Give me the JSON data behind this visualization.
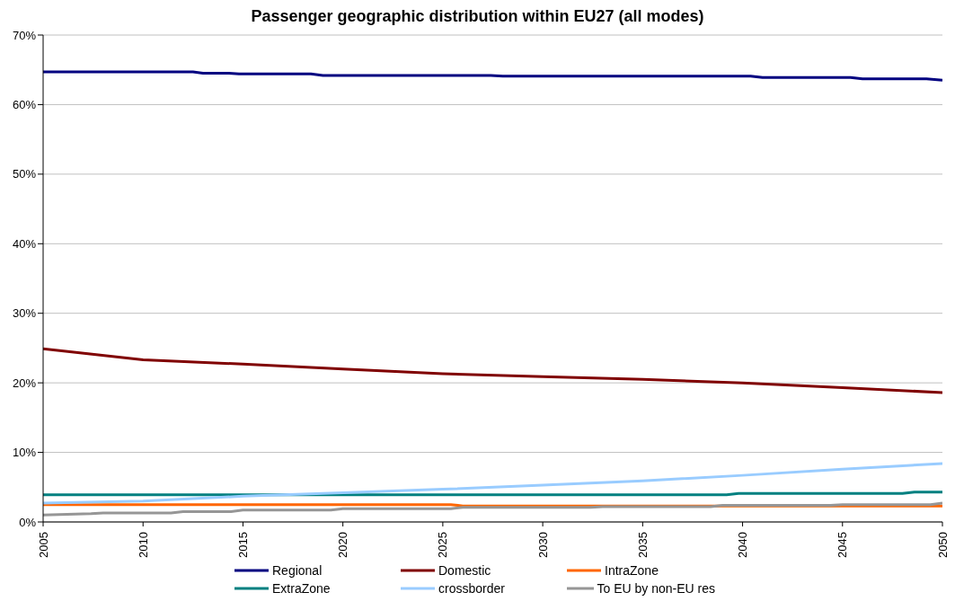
{
  "chart_data": {
    "type": "line",
    "title": "Passenger geographic distribution within EU27 (all modes)",
    "xlim": [
      2005,
      2050
    ],
    "xticks": [
      2005,
      2010,
      2015,
      2020,
      2025,
      2030,
      2035,
      2040,
      2045,
      2050
    ],
    "ylim": [
      0,
      70
    ],
    "yticks": [
      {
        "value": 0,
        "label": "0%"
      },
      {
        "value": 10,
        "label": "10%"
      },
      {
        "value": 20,
        "label": "20%"
      },
      {
        "value": 30,
        "label": "30%"
      },
      {
        "value": 40,
        "label": "40%"
      },
      {
        "value": 50,
        "label": "50%"
      },
      {
        "value": 60,
        "label": "60%"
      },
      {
        "value": 70,
        "label": "70%"
      }
    ],
    "grid": "y",
    "legend": "bottom",
    "marker": "none",
    "line_style": "solid",
    "series": [
      {
        "name": "Regional",
        "color": "#000080",
        "x": [
          2005,
          2012.5,
          2013,
          2014.3,
          2014.8,
          2018.4,
          2019,
          2027.4,
          2028,
          2040.4,
          2041,
          2045.4,
          2046,
          2049.2,
          2050
        ],
        "values": [
          64.7,
          64.7,
          64.5,
          64.5,
          64.4,
          64.4,
          64.2,
          64.2,
          64.1,
          64.1,
          63.9,
          63.9,
          63.7,
          63.7,
          63.5
        ]
      },
      {
        "name": "Domestic",
        "color": "#800000",
        "x": [
          2005,
          2010,
          2015,
          2020,
          2025,
          2030,
          2035,
          2040,
          2045,
          2050
        ],
        "values": [
          24.9,
          23.3,
          22.7,
          22.0,
          21.3,
          20.9,
          20.5,
          20.0,
          19.3,
          18.6
        ]
      },
      {
        "name": "IntraZone",
        "color": "#ff6600",
        "x": [
          2005,
          2025.4,
          2026,
          2050
        ],
        "values": [
          2.5,
          2.5,
          2.3,
          2.3
        ]
      },
      {
        "name": "ExtraZone",
        "color": "#008080",
        "x": [
          2005,
          2039.2,
          2039.8,
          2048,
          2048.6,
          2050
        ],
        "values": [
          3.9,
          3.9,
          4.1,
          4.1,
          4.3,
          4.3
        ]
      },
      {
        "name": "crossborder",
        "color": "#99ccff",
        "x": [
          2005,
          2010,
          2015,
          2020,
          2025,
          2030,
          2035,
          2040,
          2045,
          2050
        ],
        "values": [
          2.7,
          3.0,
          3.7,
          4.2,
          4.7,
          5.3,
          5.9,
          6.7,
          7.6,
          8.4
        ]
      },
      {
        "name": "To EU by non-EU res",
        "color": "#969696",
        "x": [
          2005,
          2007.4,
          2008,
          2011.4,
          2012,
          2014.4,
          2015,
          2019.4,
          2020,
          2025.4,
          2026,
          2032.4,
          2033,
          2038.4,
          2039,
          2044.4,
          2045,
          2049.4,
          2050
        ],
        "values": [
          1.0,
          1.2,
          1.3,
          1.3,
          1.5,
          1.5,
          1.7,
          1.7,
          1.9,
          1.9,
          2.1,
          2.1,
          2.2,
          2.2,
          2.4,
          2.4,
          2.5,
          2.5,
          2.7
        ]
      }
    ]
  }
}
